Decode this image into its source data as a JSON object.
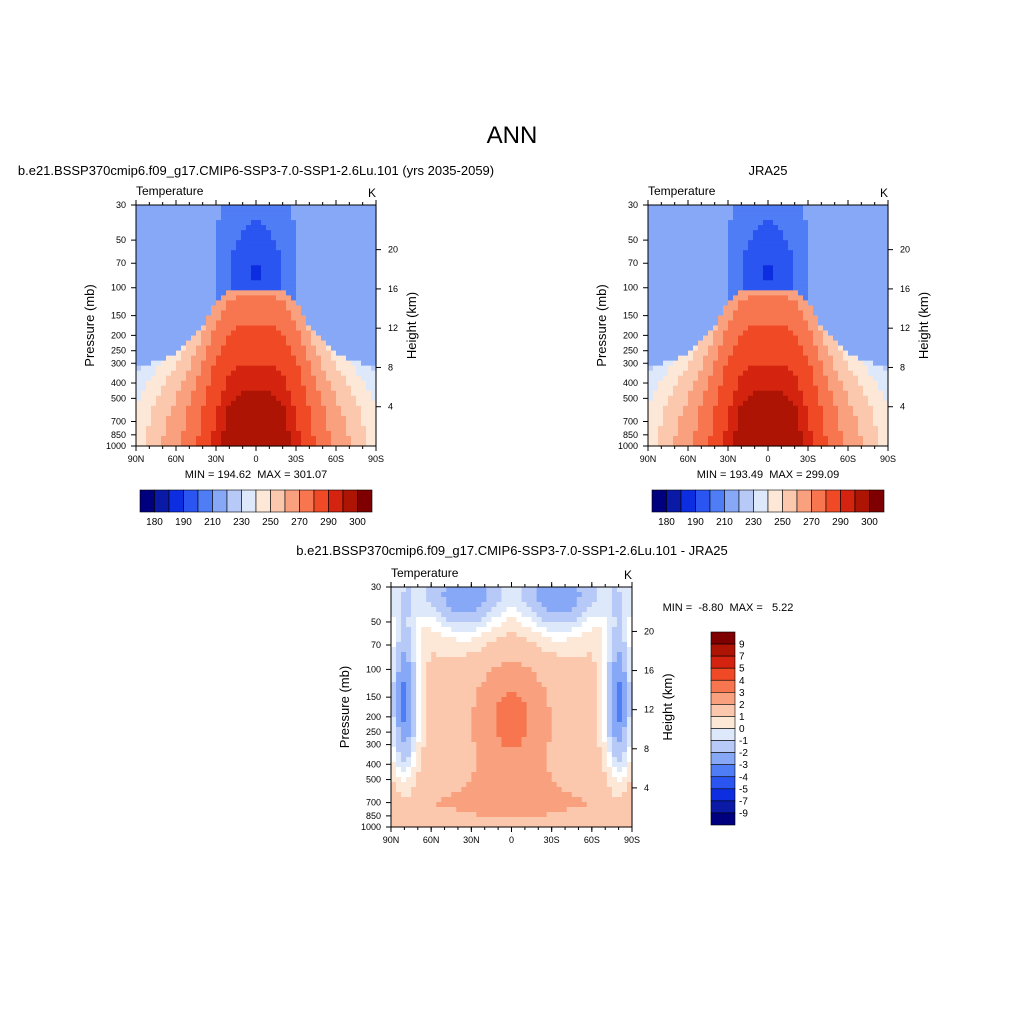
{
  "page_title": "ANN",
  "colors": {
    "abs_scale": [
      "#00007f",
      "#0a1aa6",
      "#0c2ee0",
      "#2b55f0",
      "#4f7df5",
      "#87a8f7",
      "#b6c9f7",
      "#dde8fb",
      "#fde8d7",
      "#fbc8ad",
      "#f9a07e",
      "#f7764f",
      "#ef4a25",
      "#d4240f",
      "#ad1404",
      "#7f0000"
    ],
    "diff_scale": [
      "#00007f",
      "#0a1aa6",
      "#0c2ee0",
      "#2b55f0",
      "#4f7df5",
      "#87a8f7",
      "#b6c9f7",
      "#dde8fb",
      "#ffffff",
      "#fde8d7",
      "#fbc8ad",
      "#f9a07e",
      "#f7764f",
      "#ef4a25",
      "#d4240f",
      "#ad1404",
      "#7f0000"
    ]
  },
  "chart_data": [
    {
      "type": "heatmap",
      "panel_title": "b.e21.BSSP370cmip6.f09_g17.CMIP6-SSP3-7.0-SSP1-2.6Lu.101 (yrs 2035-2059)",
      "left_label": "Temperature",
      "right_label": "K",
      "ylabel": "Pressure (mb)",
      "y2label": "Height (km)",
      "x_ticks": [
        "90N",
        "60N",
        "30N",
        "0",
        "30S",
        "60S",
        "90S"
      ],
      "x_values": [
        90,
        60,
        30,
        0,
        -30,
        -60,
        -90
      ],
      "y_ticks": [
        "30",
        "50",
        "70",
        "100",
        "150",
        "200",
        "250",
        "300",
        "400",
        "500",
        "700",
        "850",
        "1000"
      ],
      "y_values": [
        30,
        50,
        70,
        100,
        150,
        200,
        250,
        300,
        400,
        500,
        700,
        850,
        1000
      ],
      "y2_ticks": [
        "20",
        "16",
        "12",
        "8",
        "4"
      ],
      "y2_values": [
        20,
        16,
        12,
        8,
        4
      ],
      "ylim": [
        1000,
        30
      ],
      "y_scale": "log",
      "stats": "MIN = 194.62  MAX = 301.07",
      "colorbar": {
        "orientation": "horizontal",
        "labels": [
          "180",
          "190",
          "210",
          "230",
          "250",
          "270",
          "290",
          "300"
        ]
      },
      "field": "abs"
    },
    {
      "type": "heatmap",
      "panel_title": "JRA25",
      "left_label": "Temperature",
      "right_label": "K",
      "ylabel": "Pressure (mb)",
      "y2label": "Height (km)",
      "x_ticks": [
        "90N",
        "60N",
        "30N",
        "0",
        "30S",
        "60S",
        "90S"
      ],
      "x_values": [
        90,
        60,
        30,
        0,
        -30,
        -60,
        -90
      ],
      "y_ticks": [
        "30",
        "50",
        "70",
        "100",
        "150",
        "200",
        "250",
        "300",
        "400",
        "500",
        "700",
        "850",
        "1000"
      ],
      "y_values": [
        30,
        50,
        70,
        100,
        150,
        200,
        250,
        300,
        400,
        500,
        700,
        850,
        1000
      ],
      "y2_ticks": [
        "20",
        "16",
        "12",
        "8",
        "4"
      ],
      "y2_values": [
        20,
        16,
        12,
        8,
        4
      ],
      "ylim": [
        1000,
        30
      ],
      "y_scale": "log",
      "stats": "MIN = 193.49  MAX = 299.09",
      "colorbar": {
        "orientation": "horizontal",
        "labels": [
          "180",
          "190",
          "210",
          "230",
          "250",
          "270",
          "290",
          "300"
        ]
      },
      "field": "abs"
    },
    {
      "type": "heatmap",
      "panel_title": "b.e21.BSSP370cmip6.f09_g17.CMIP6-SSP3-7.0-SSP1-2.6Lu.101 - JRA25",
      "left_label": "Temperature",
      "right_label": "K",
      "ylabel": "Pressure (mb)",
      "y2label": "Height (km)",
      "x_ticks": [
        "90N",
        "60N",
        "30N",
        "0",
        "30S",
        "60S",
        "90S"
      ],
      "x_values": [
        90,
        60,
        30,
        0,
        -30,
        -60,
        -90
      ],
      "y_ticks": [
        "30",
        "50",
        "70",
        "100",
        "150",
        "200",
        "250",
        "300",
        "400",
        "500",
        "700",
        "850",
        "1000"
      ],
      "y_values": [
        30,
        50,
        70,
        100,
        150,
        200,
        250,
        300,
        400,
        500,
        700,
        850,
        1000
      ],
      "y2_ticks": [
        "20",
        "16",
        "12",
        "8",
        "4"
      ],
      "y2_values": [
        20,
        16,
        12,
        8,
        4
      ],
      "ylim": [
        1000,
        30
      ],
      "y_scale": "log",
      "stats": "MIN =  -8.80  MAX =   5.22",
      "colorbar": {
        "orientation": "vertical",
        "labels": [
          "9",
          "7",
          "5",
          "4",
          "3",
          "2",
          "1",
          "0",
          "-1",
          "-2",
          "-3",
          "-4",
          "-5",
          "-7",
          "-9"
        ]
      },
      "field": "diff"
    }
  ]
}
